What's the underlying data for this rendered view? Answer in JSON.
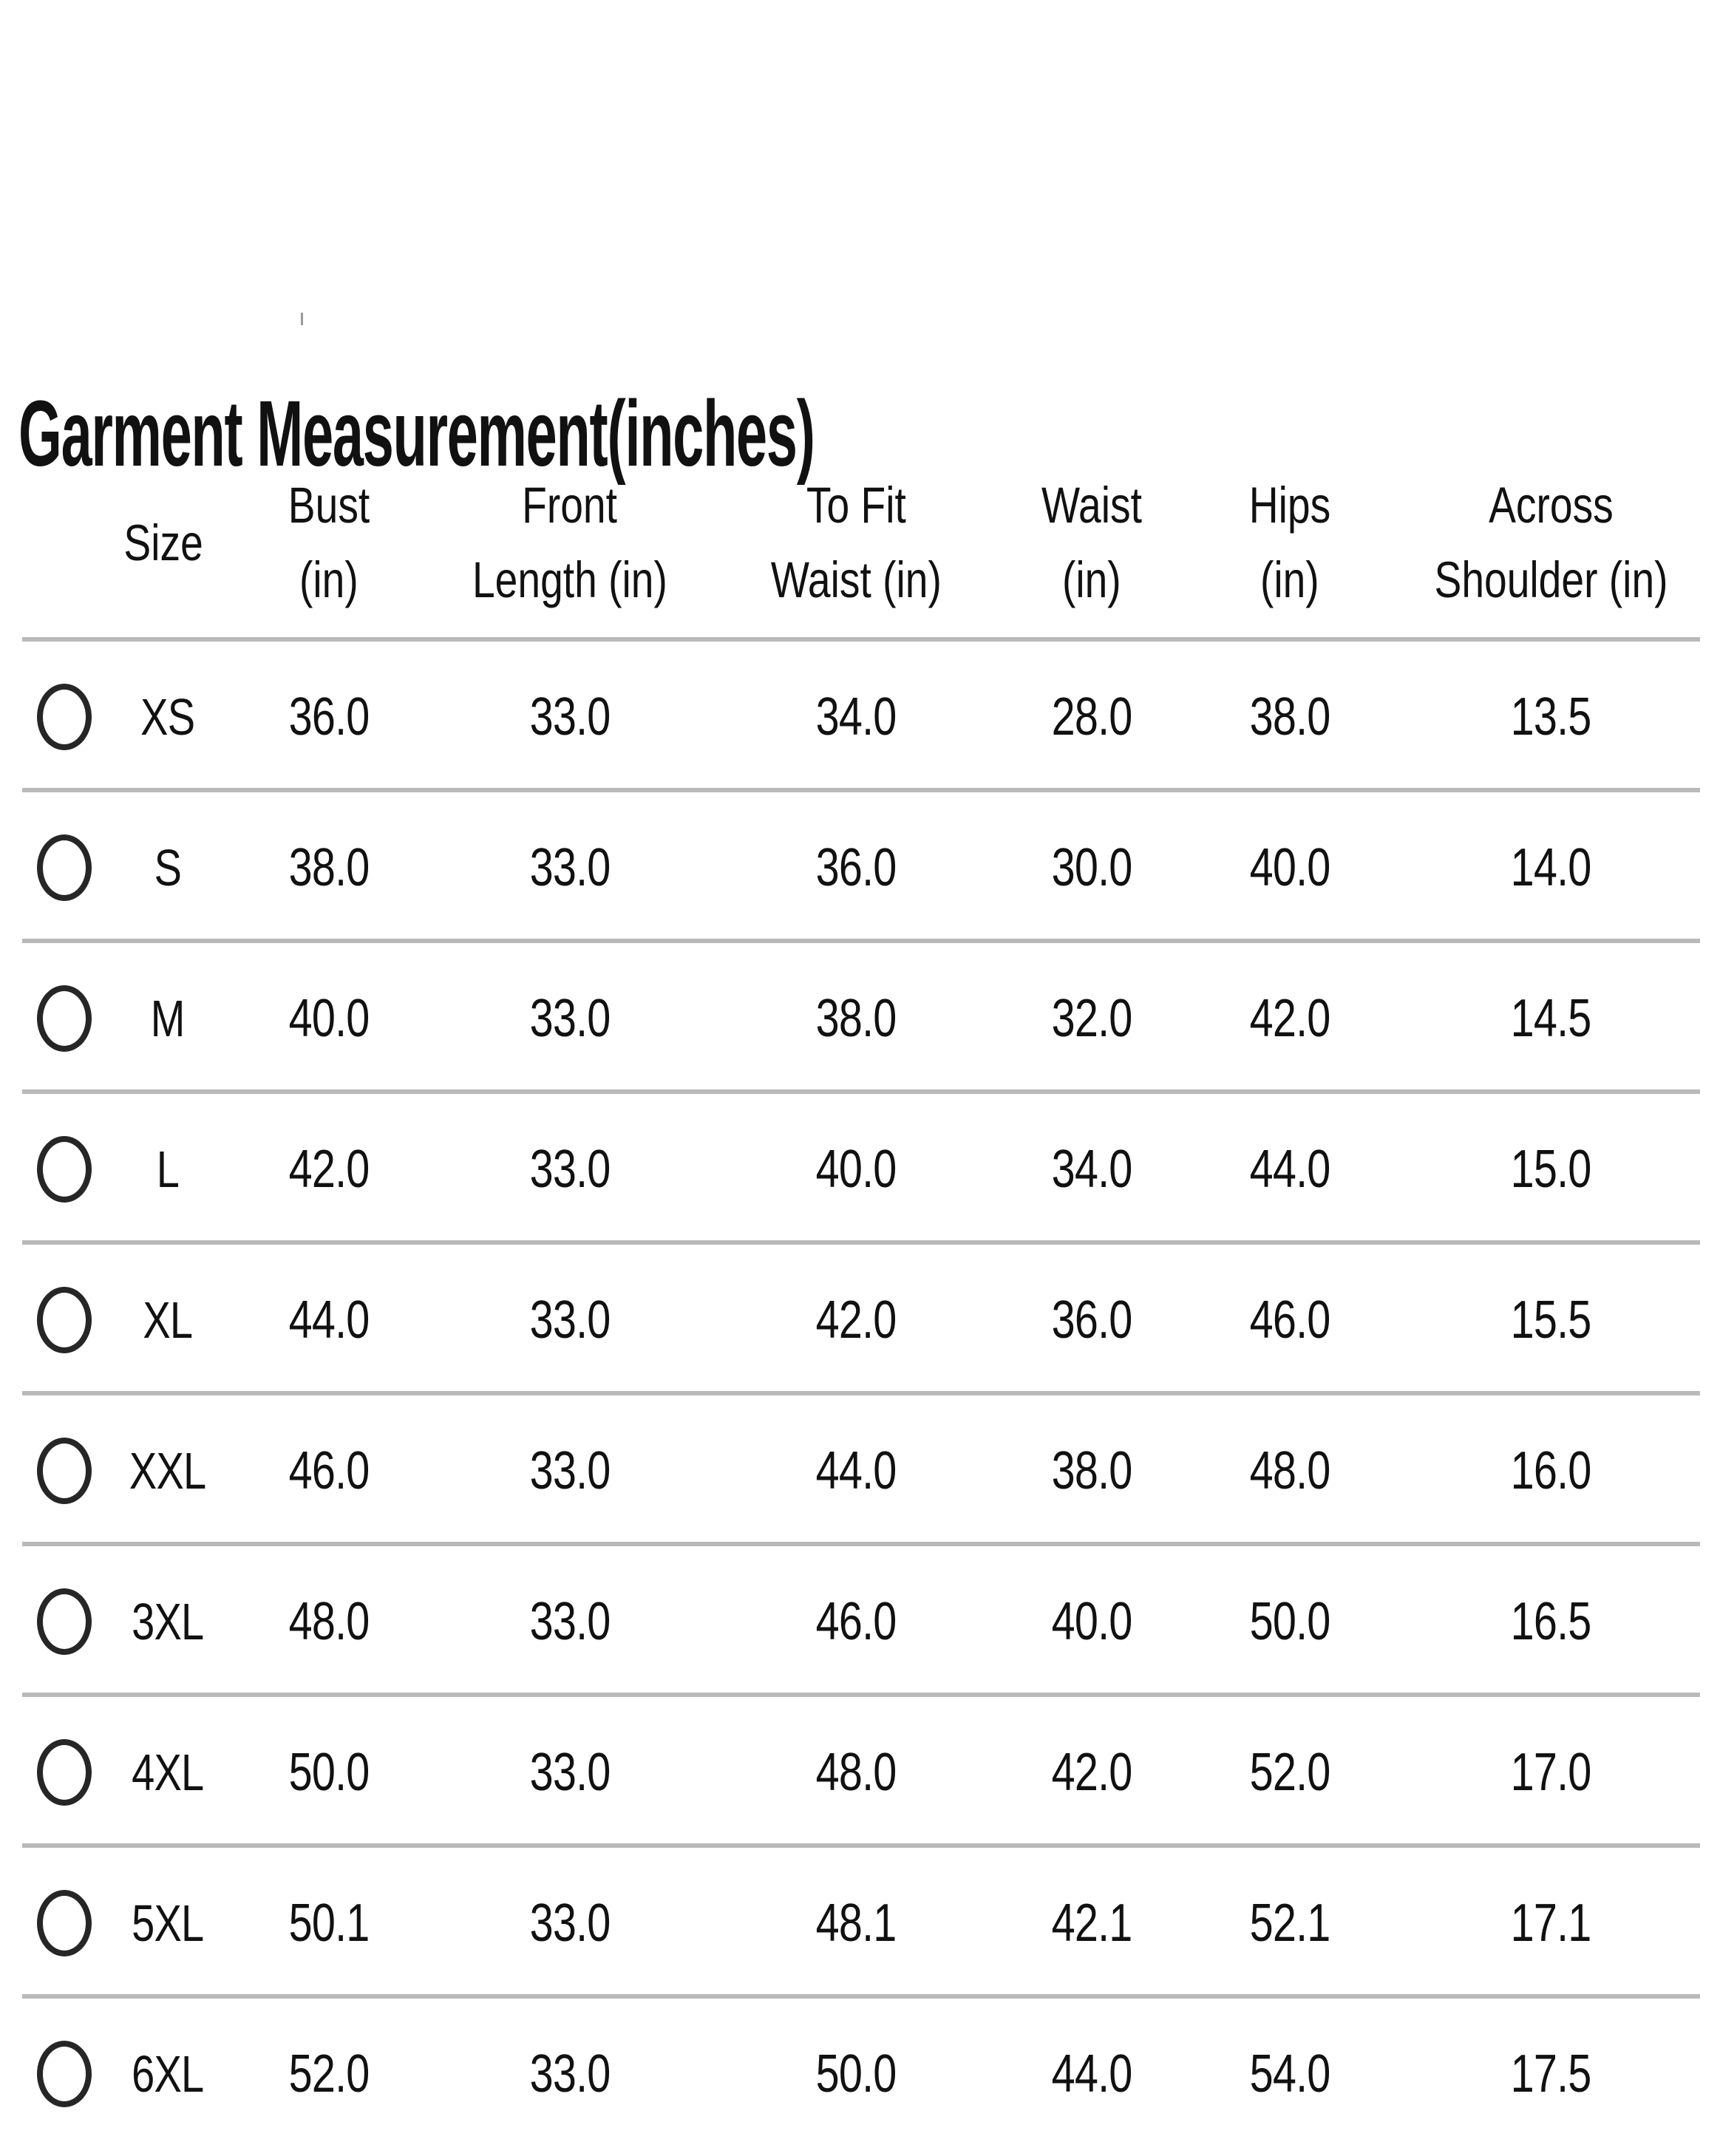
{
  "page": {
    "title": "Garment Measurement(inches)"
  },
  "table": {
    "columns": [
      {
        "line1": "Size",
        "line2": ""
      },
      {
        "line1": "Bust",
        "line2": "(in)"
      },
      {
        "line1": "Front",
        "line2": "Length (in)"
      },
      {
        "line1": "To Fit",
        "line2": "Waist (in)"
      },
      {
        "line1": "Waist",
        "line2": "(in)"
      },
      {
        "line1": "Hips",
        "line2": "(in)"
      },
      {
        "line1": "Across",
        "line2": "Shoulder (in)"
      }
    ],
    "rows": [
      {
        "size": "XS",
        "bust": "36.0",
        "front_length": "33.0",
        "to_fit_waist": "34.0",
        "waist": "28.0",
        "hips": "38.0",
        "across_shoulder": "13.5",
        "selected": false
      },
      {
        "size": "S",
        "bust": "38.0",
        "front_length": "33.0",
        "to_fit_waist": "36.0",
        "waist": "30.0",
        "hips": "40.0",
        "across_shoulder": "14.0",
        "selected": false
      },
      {
        "size": "M",
        "bust": "40.0",
        "front_length": "33.0",
        "to_fit_waist": "38.0",
        "waist": "32.0",
        "hips": "42.0",
        "across_shoulder": "14.5",
        "selected": false
      },
      {
        "size": "L",
        "bust": "42.0",
        "front_length": "33.0",
        "to_fit_waist": "40.0",
        "waist": "34.0",
        "hips": "44.0",
        "across_shoulder": "15.0",
        "selected": false
      },
      {
        "size": "XL",
        "bust": "44.0",
        "front_length": "33.0",
        "to_fit_waist": "42.0",
        "waist": "36.0",
        "hips": "46.0",
        "across_shoulder": "15.5",
        "selected": false
      },
      {
        "size": "XXL",
        "bust": "46.0",
        "front_length": "33.0",
        "to_fit_waist": "44.0",
        "waist": "38.0",
        "hips": "48.0",
        "across_shoulder": "16.0",
        "selected": false
      },
      {
        "size": "3XL",
        "bust": "48.0",
        "front_length": "33.0",
        "to_fit_waist": "46.0",
        "waist": "40.0",
        "hips": "50.0",
        "across_shoulder": "16.5",
        "selected": false
      },
      {
        "size": "4XL",
        "bust": "50.0",
        "front_length": "33.0",
        "to_fit_waist": "48.0",
        "waist": "42.0",
        "hips": "52.0",
        "across_shoulder": "17.0",
        "selected": false
      },
      {
        "size": "5XL",
        "bust": "50.1",
        "front_length": "33.0",
        "to_fit_waist": "48.1",
        "waist": "42.1",
        "hips": "52.1",
        "across_shoulder": "17.1",
        "selected": false
      },
      {
        "size": "6XL",
        "bust": "52.0",
        "front_length": "33.0",
        "to_fit_waist": "50.0",
        "waist": "44.0",
        "hips": "54.0",
        "across_shoulder": "17.5",
        "selected": false
      }
    ]
  }
}
